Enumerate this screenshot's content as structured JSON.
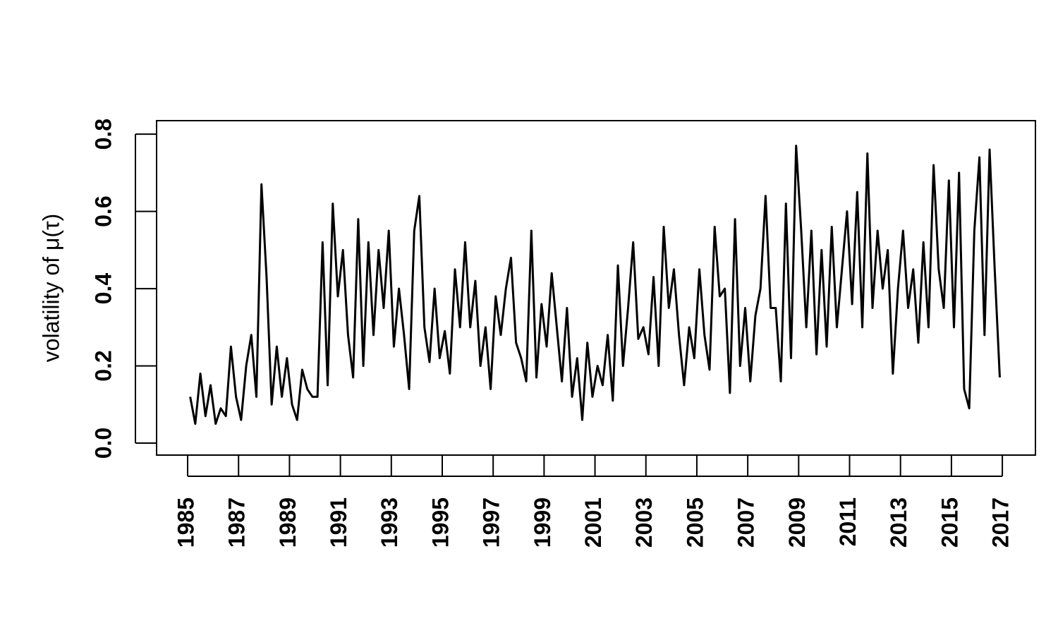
{
  "chart_data": {
    "type": "line",
    "ylabel": "volatility of  μ(τ)",
    "color": "#000000",
    "xlim": [
      1983.78,
      2018.3
    ],
    "ylim": [
      -0.031,
      0.835
    ],
    "xticks": [
      1985,
      1987,
      1989,
      1991,
      1993,
      1995,
      1997,
      1999,
      2001,
      2003,
      2005,
      2007,
      2009,
      2011,
      2013,
      2015,
      2017
    ],
    "yticks": [
      {
        "value": 0,
        "label": "0.0"
      },
      0.2,
      0.4,
      0.6,
      0.8
    ],
    "x": [
      1985.1,
      1985.3,
      1985.5,
      1985.7,
      1985.9,
      1986.1,
      1986.3,
      1986.5,
      1986.7,
      1986.9,
      1987.1,
      1987.3,
      1987.5,
      1987.7,
      1987.9,
      1988.1,
      1988.3,
      1988.5,
      1988.7,
      1988.9,
      1989.1,
      1989.3,
      1989.5,
      1989.7,
      1989.9,
      1990.1,
      1990.3,
      1990.5,
      1990.7,
      1990.9,
      1991.1,
      1991.3,
      1991.5,
      1991.7,
      1991.9,
      1992.1,
      1992.3,
      1992.5,
      1992.7,
      1992.9,
      1993.1,
      1993.3,
      1993.5,
      1993.7,
      1993.9,
      1994.1,
      1994.3,
      1994.5,
      1994.7,
      1994.9,
      1995.1,
      1995.3,
      1995.5,
      1995.7,
      1995.9,
      1996.1,
      1996.3,
      1996.5,
      1996.7,
      1996.9,
      1997.1,
      1997.3,
      1997.5,
      1997.7,
      1997.9,
      1998.1,
      1998.3,
      1998.5,
      1998.7,
      1998.9,
      1999.1,
      1999.3,
      1999.5,
      1999.7,
      1999.9,
      2000.1,
      2000.3,
      2000.5,
      2000.7,
      2000.9,
      2001.1,
      2001.3,
      2001.5,
      2001.7,
      2001.9,
      2002.1,
      2002.3,
      2002.5,
      2002.7,
      2002.9,
      2003.1,
      2003.3,
      2003.5,
      2003.7,
      2003.9,
      2004.1,
      2004.3,
      2004.5,
      2004.7,
      2004.9,
      2005.1,
      2005.3,
      2005.5,
      2005.7,
      2005.9,
      2006.1,
      2006.3,
      2006.5,
      2006.7,
      2006.9,
      2007.1,
      2007.3,
      2007.5,
      2007.7,
      2007.9,
      2008.1,
      2008.3,
      2008.5,
      2008.7,
      2008.9,
      2009.1,
      2009.3,
      2009.5,
      2009.7,
      2009.9,
      2010.1,
      2010.3,
      2010.5,
      2010.7,
      2010.9,
      2011.1,
      2011.3,
      2011.5,
      2011.7,
      2011.9,
      2012.1,
      2012.3,
      2012.5,
      2012.7,
      2012.9,
      2013.1,
      2013.3,
      2013.5,
      2013.7,
      2013.9,
      2014.1,
      2014.3,
      2014.5,
      2014.7,
      2014.9,
      2015.1,
      2015.3,
      2015.5,
      2015.7,
      2015.9,
      2016.1,
      2016.3,
      2016.5,
      2016.7,
      2016.9
    ],
    "values": [
      0.12,
      0.05,
      0.18,
      0.07,
      0.15,
      0.05,
      0.09,
      0.07,
      0.25,
      0.12,
      0.06,
      0.2,
      0.28,
      0.12,
      0.67,
      0.43,
      0.1,
      0.25,
      0.12,
      0.22,
      0.1,
      0.06,
      0.19,
      0.14,
      0.12,
      0.12,
      0.52,
      0.15,
      0.62,
      0.38,
      0.5,
      0.28,
      0.17,
      0.58,
      0.2,
      0.52,
      0.28,
      0.5,
      0.35,
      0.55,
      0.25,
      0.4,
      0.28,
      0.14,
      0.55,
      0.64,
      0.3,
      0.21,
      0.4,
      0.22,
      0.29,
      0.18,
      0.45,
      0.3,
      0.52,
      0.3,
      0.42,
      0.2,
      0.3,
      0.14,
      0.38,
      0.28,
      0.4,
      0.48,
      0.26,
      0.22,
      0.16,
      0.55,
      0.17,
      0.36,
      0.25,
      0.44,
      0.3,
      0.16,
      0.35,
      0.12,
      0.22,
      0.06,
      0.26,
      0.12,
      0.2,
      0.15,
      0.28,
      0.11,
      0.46,
      0.2,
      0.35,
      0.52,
      0.27,
      0.3,
      0.23,
      0.43,
      0.2,
      0.56,
      0.35,
      0.45,
      0.28,
      0.15,
      0.3,
      0.22,
      0.45,
      0.28,
      0.19,
      0.56,
      0.38,
      0.4,
      0.13,
      0.58,
      0.2,
      0.35,
      0.16,
      0.33,
      0.4,
      0.64,
      0.35,
      0.35,
      0.16,
      0.62,
      0.22,
      0.77,
      0.55,
      0.3,
      0.55,
      0.23,
      0.5,
      0.25,
      0.56,
      0.3,
      0.45,
      0.6,
      0.36,
      0.65,
      0.3,
      0.75,
      0.35,
      0.55,
      0.4,
      0.5,
      0.18,
      0.4,
      0.55,
      0.35,
      0.45,
      0.26,
      0.52,
      0.3,
      0.72,
      0.45,
      0.35,
      0.68,
      0.3,
      0.7,
      0.14,
      0.09,
      0.55,
      0.74,
      0.28,
      0.76,
      0.45,
      0.17
    ]
  }
}
